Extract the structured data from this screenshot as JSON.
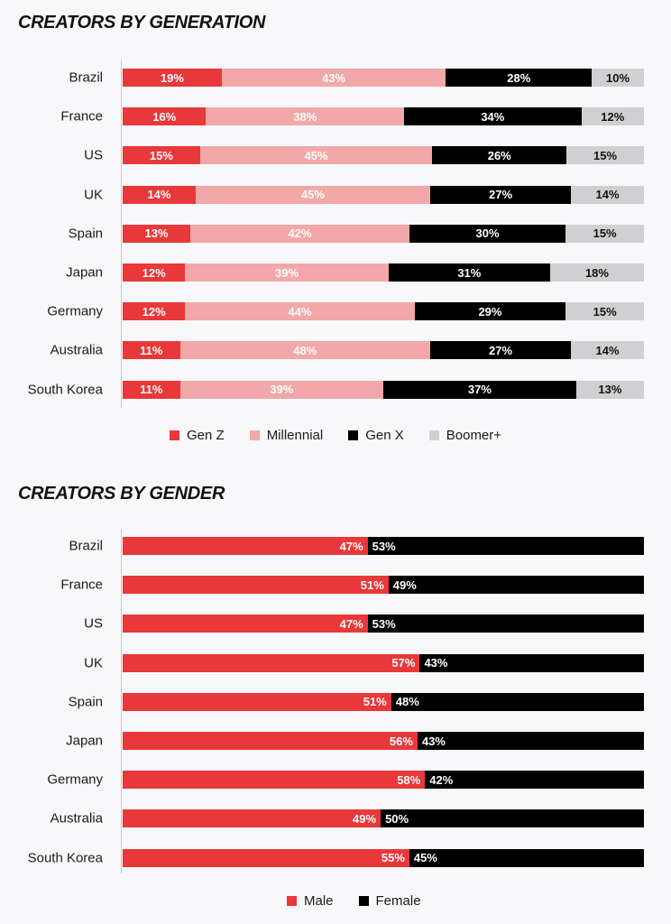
{
  "chart_data": [
    {
      "type": "bar",
      "orientation": "horizontal",
      "stacked": true,
      "title": "CREATORS BY GENERATION",
      "categories": [
        "Brazil",
        "France",
        "US",
        "UK",
        "Spain",
        "Japan",
        "Germany",
        "Australia",
        "South Korea"
      ],
      "series": [
        {
          "name": "Gen Z",
          "color": "#e8383a",
          "label_color": "#ffffff",
          "values": [
            19,
            16,
            15,
            14,
            13,
            12,
            12,
            11,
            11
          ]
        },
        {
          "name": "Millennial",
          "color": "#f2a7a8",
          "label_color": "#ffffff",
          "values": [
            43,
            38,
            45,
            45,
            42,
            39,
            44,
            48,
            39
          ]
        },
        {
          "name": "Gen X",
          "color": "#000000",
          "label_color": "#ffffff",
          "values": [
            28,
            34,
            26,
            27,
            30,
            31,
            29,
            27,
            37
          ]
        },
        {
          "name": "Boomer+",
          "color": "#d0d0d2",
          "label_color": "#111111",
          "values": [
            10,
            12,
            15,
            14,
            15,
            18,
            15,
            14,
            13
          ]
        }
      ],
      "legend": "bottom-center",
      "grid": false
    },
    {
      "type": "bar",
      "orientation": "horizontal",
      "stacked": true,
      "title": "CREATORS BY GENDER",
      "categories": [
        "Brazil",
        "France",
        "US",
        "UK",
        "Spain",
        "Japan",
        "Germany",
        "Australia",
        "South Korea"
      ],
      "series": [
        {
          "name": "Male",
          "color": "#e8383a",
          "label_color": "#ffffff",
          "label_align": "end",
          "values": [
            47,
            51,
            47,
            57,
            51,
            56,
            58,
            49,
            55
          ]
        },
        {
          "name": "Female",
          "color": "#000000",
          "label_color": "#ffffff",
          "label_align": "start",
          "values": [
            53,
            49,
            53,
            43,
            48,
            43,
            42,
            50,
            45
          ]
        }
      ],
      "legend": "bottom-center",
      "grid": false
    }
  ]
}
